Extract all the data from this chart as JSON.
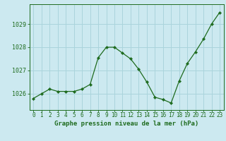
{
  "x": [
    0,
    1,
    2,
    3,
    4,
    5,
    6,
    7,
    8,
    9,
    10,
    11,
    12,
    13,
    14,
    15,
    16,
    17,
    18,
    19,
    20,
    21,
    22,
    23
  ],
  "y": [
    1025.8,
    1026.0,
    1026.2,
    1026.1,
    1026.1,
    1026.1,
    1026.2,
    1026.4,
    1027.55,
    1028.0,
    1028.0,
    1027.75,
    1027.5,
    1027.05,
    1026.5,
    1025.85,
    1025.75,
    1025.6,
    1026.55,
    1027.3,
    1027.8,
    1028.35,
    1029.0,
    1029.5
  ],
  "line_color": "#1e6b1e",
  "marker": "D",
  "marker_size": 2.2,
  "bg_color": "#cce9f0",
  "grid_color": "#aad4dc",
  "axes_color": "#1e6b1e",
  "ylabel_ticks": [
    1026,
    1027,
    1028,
    1029
  ],
  "xlabel": "Graphe pression niveau de la mer (hPa)",
  "xlabel_fontsize": 6.5,
  "tick_fontsize": 5.5,
  "ylim": [
    1025.3,
    1029.85
  ],
  "xlim": [
    -0.5,
    23.5
  ]
}
